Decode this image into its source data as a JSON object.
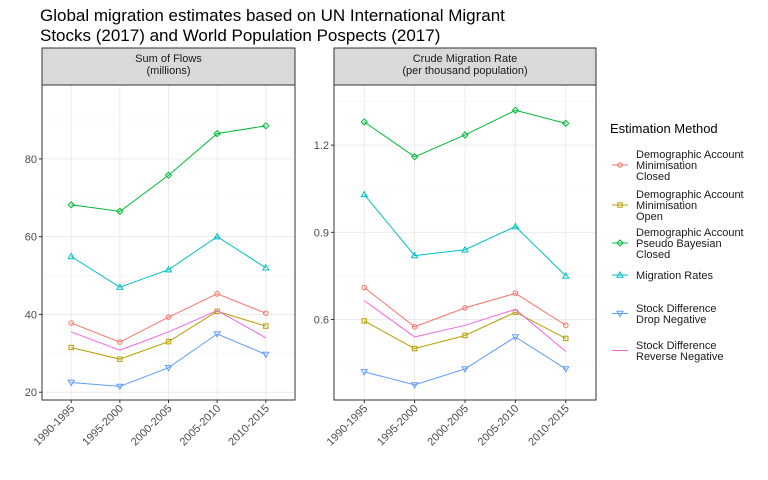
{
  "title": {
    "line1": "Global migration estimates based on UN International Migrant",
    "line2": "Stocks (2017) and World Population Pospects (2017)"
  },
  "legend": {
    "title": "Estimation Method",
    "entries": [
      {
        "key": "dam_closed",
        "lines": [
          "Demographic Account",
          "Minimisation",
          "Closed"
        ],
        "color": "#F8766D",
        "shape": "circle"
      },
      {
        "key": "dam_open",
        "lines": [
          "Demographic Account",
          "Minimisation",
          "Open"
        ],
        "color": "#B79F00",
        "shape": "square"
      },
      {
        "key": "dapb_closed",
        "lines": [
          "Demographic Account",
          "Pseudo Bayesian",
          "Closed"
        ],
        "color": "#00BA38",
        "shape": "diamond"
      },
      {
        "key": "mig_rates",
        "lines": [
          "Migration Rates"
        ],
        "color": "#00BFC4",
        "shape": "triangle"
      },
      {
        "key": "sd_drop",
        "lines": [
          "Stock Difference",
          "Drop Negative"
        ],
        "color": "#619CFF",
        "shape": "triangle-down"
      },
      {
        "key": "sd_reverse",
        "lines": [
          "Stock Difference",
          "Reverse Negative"
        ],
        "color": "#F564E3",
        "shape": "none"
      }
    ]
  },
  "chart_data": [
    {
      "type": "line",
      "strip": [
        "Sum of Flows",
        "(millions)"
      ],
      "categories": [
        "1990-1995",
        "1995-2000",
        "2000-2005",
        "2005-2010",
        "2010-2015"
      ],
      "ylim": [
        18,
        99
      ],
      "yticks": [
        20,
        40,
        60,
        80
      ],
      "ytick_labels": [
        "20",
        "40",
        "60",
        "80"
      ],
      "grid": true,
      "series": [
        {
          "key": "dam_closed",
          "name": "Demographic Account Minimisation Closed",
          "values": [
            37.8,
            32.9,
            39.3,
            45.3,
            40.3
          ]
        },
        {
          "key": "dam_open",
          "name": "Demographic Account Minimisation Open",
          "values": [
            31.5,
            28.5,
            33.0,
            40.8,
            37.0
          ]
        },
        {
          "key": "dapb_closed",
          "name": "Demographic Account Pseudo Bayesian Closed",
          "values": [
            68.2,
            66.5,
            75.8,
            86.5,
            88.5
          ]
        },
        {
          "key": "mig_rates",
          "name": "Migration Rates",
          "values": [
            54.9,
            47.0,
            51.5,
            60.0,
            52.0
          ]
        },
        {
          "key": "sd_drop",
          "name": "Stock Difference Drop Negative",
          "values": [
            22.5,
            21.5,
            26.3,
            35.0,
            29.7
          ]
        },
        {
          "key": "sd_reverse",
          "name": "Stock Difference Reverse Negative",
          "values": [
            35.5,
            30.8,
            35.5,
            41.0,
            34.0
          ]
        }
      ]
    },
    {
      "type": "line",
      "strip": [
        "Crude Migration Rate",
        "(per thousand population)"
      ],
      "categories": [
        "1990-1995",
        "1995-2000",
        "2000-2005",
        "2005-2010",
        "2010-2015"
      ],
      "ylim": [
        0.323,
        1.407
      ],
      "yticks": [
        0.6,
        0.9,
        1.2
      ],
      "ytick_labels": [
        "0.6",
        "0.9",
        "1.2"
      ],
      "grid": true,
      "series": [
        {
          "key": "dam_closed",
          "name": "Demographic Account Minimisation Closed",
          "values": [
            0.71,
            0.575,
            0.64,
            0.69,
            0.58
          ]
        },
        {
          "key": "dam_open",
          "name": "Demographic Account Minimisation Open",
          "values": [
            0.595,
            0.5,
            0.545,
            0.625,
            0.535
          ]
        },
        {
          "key": "dapb_closed",
          "name": "Demographic Account Pseudo Bayesian Closed",
          "values": [
            1.28,
            1.16,
            1.235,
            1.32,
            1.275
          ]
        },
        {
          "key": "mig_rates",
          "name": "Migration Rates",
          "values": [
            1.03,
            0.82,
            0.84,
            0.92,
            0.75
          ]
        },
        {
          "key": "sd_drop",
          "name": "Stock Difference Drop Negative",
          "values": [
            0.42,
            0.375,
            0.43,
            0.54,
            0.43
          ]
        },
        {
          "key": "sd_reverse",
          "name": "Stock Difference Reverse Negative",
          "values": [
            0.665,
            0.54,
            0.58,
            0.635,
            0.49
          ]
        }
      ]
    }
  ]
}
